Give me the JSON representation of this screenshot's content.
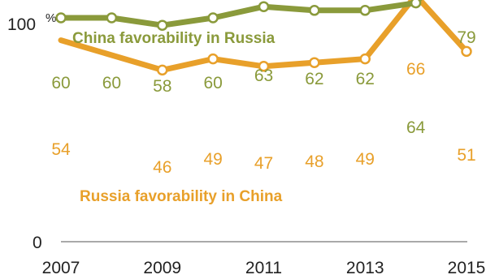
{
  "chart_data": {
    "type": "line",
    "x": [
      2007,
      2008,
      2009,
      2010,
      2011,
      2012,
      2013,
      2014,
      2015
    ],
    "series": [
      {
        "name": "China favorability in Russia",
        "values": [
          60,
          60,
          58,
          60,
          63,
          62,
          62,
          64,
          79
        ],
        "labels": [
          "60",
          "60",
          "58",
          "60",
          "63",
          "62",
          "62",
          "64",
          "79"
        ],
        "color": "#8a9a3b"
      },
      {
        "name": "Russia favorability in China",
        "values": [
          54,
          null,
          46,
          49,
          47,
          48,
          49,
          66,
          51
        ],
        "labels": [
          "54",
          "",
          "46",
          "49",
          "47",
          "48",
          "49",
          "66",
          "51"
        ],
        "color": "#e8a02a"
      }
    ],
    "x_tick_labels": [
      "2007",
      "2009",
      "2011",
      "2013",
      "2015"
    ],
    "x_tick_values": [
      2007,
      2009,
      2011,
      2013,
      2015
    ],
    "y_max_label": "100",
    "y_max_unit": "%",
    "y_min_label": "0",
    "ylim": [
      0,
      100
    ],
    "grid": false,
    "axis_color": "#555555"
  }
}
